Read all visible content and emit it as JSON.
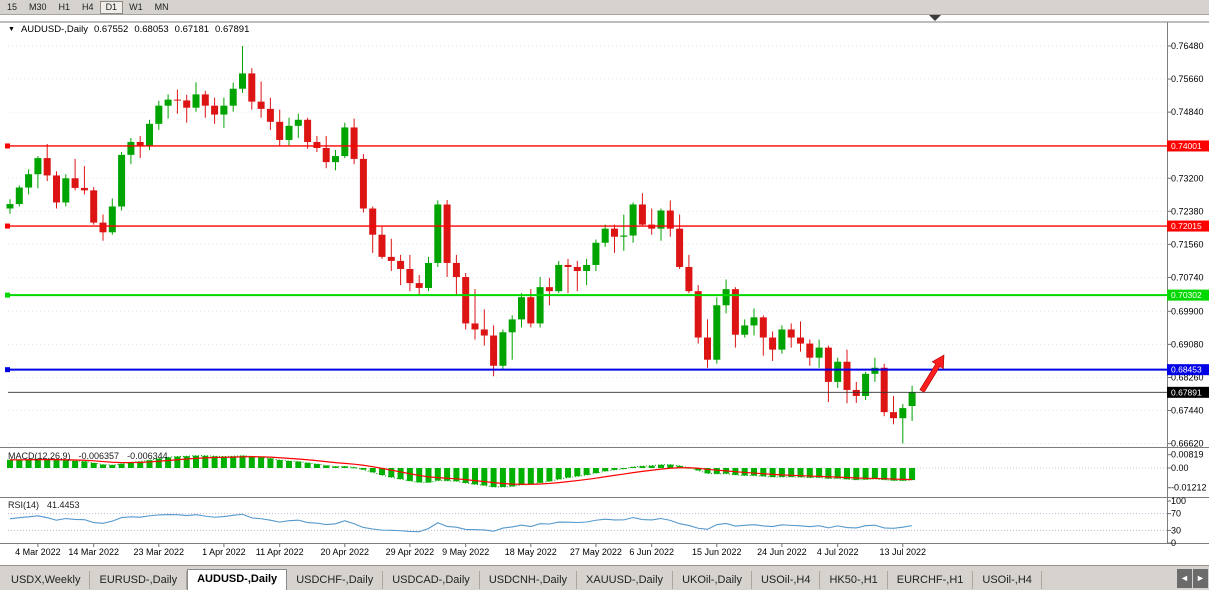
{
  "toolbar": {
    "timeframes": [
      {
        "label": "15",
        "active": false
      },
      {
        "label": "M30",
        "active": false
      },
      {
        "label": "H1",
        "active": false
      },
      {
        "label": "H4",
        "active": false
      },
      {
        "label": "D1",
        "active": true
      },
      {
        "label": "W1",
        "active": false
      },
      {
        "label": "MN",
        "active": false
      }
    ]
  },
  "chart_title": {
    "menu_icon": "▼",
    "symbol": "AUDUSD-,Daily",
    "open": "0.67552",
    "high": "0.68053",
    "low": "0.67181",
    "close": "0.67891"
  },
  "indicator_labels": {
    "macd": {
      "name": "MACD(12,26,9)",
      "main_value": "-0.006357",
      "signal_value": "-0.006344"
    },
    "rsi": {
      "name": "RSI(14)",
      "value": "41.4453"
    }
  },
  "chart_data": {
    "type": "candlestick",
    "symbol": "AUDUSD",
    "timeframe": "Daily",
    "price_view_range": [
      0.663,
      0.768
    ],
    "y_axis_labels": [
      "0.76480",
      "0.75660",
      "0.74840",
      "0.73200",
      "0.72380",
      "0.71560",
      "0.70740",
      "0.69900",
      "0.69080",
      "0.68260",
      "0.67440",
      "0.66620"
    ],
    "hlines": [
      {
        "price": 0.74001,
        "label": "0.74001",
        "color": "#FF0000",
        "width": 1.4
      },
      {
        "price": 0.72015,
        "label": "0.72015",
        "color": "#FF0000",
        "width": 1.4
      },
      {
        "price": 0.70302,
        "label": "0.70302",
        "color": "#00D800",
        "width": 2
      },
      {
        "price": 0.68453,
        "label": "0.68453",
        "color": "#0000E6",
        "width": 2
      }
    ],
    "current_price": {
      "price": 0.67891,
      "label": "0.67891",
      "color": "#000000"
    },
    "candles": [
      [
        0.7245,
        0.7268,
        0.7232,
        0.7256
      ],
      [
        0.7256,
        0.7302,
        0.725,
        0.7297
      ],
      [
        0.7297,
        0.7342,
        0.728,
        0.733
      ],
      [
        0.733,
        0.7375,
        0.7295,
        0.737
      ],
      [
        0.737,
        0.7405,
        0.7313,
        0.7327
      ],
      [
        0.7327,
        0.7337,
        0.7245,
        0.726
      ],
      [
        0.726,
        0.733,
        0.725,
        0.732
      ],
      [
        0.732,
        0.7368,
        0.729,
        0.7296
      ],
      [
        0.7296,
        0.735,
        0.728,
        0.729
      ],
      [
        0.729,
        0.7298,
        0.7205,
        0.721
      ],
      [
        0.721,
        0.723,
        0.7165,
        0.7186
      ],
      [
        0.7186,
        0.727,
        0.718,
        0.725
      ],
      [
        0.725,
        0.7385,
        0.724,
        0.7378
      ],
      [
        0.7378,
        0.742,
        0.7355,
        0.741
      ],
      [
        0.741,
        0.7425,
        0.737,
        0.74
      ],
      [
        0.74,
        0.7465,
        0.739,
        0.7455
      ],
      [
        0.7455,
        0.7512,
        0.744,
        0.75
      ],
      [
        0.75,
        0.7528,
        0.7468,
        0.7515
      ],
      [
        0.7515,
        0.754,
        0.748,
        0.7513
      ],
      [
        0.7513,
        0.7527,
        0.7458,
        0.7495
      ],
      [
        0.7495,
        0.7558,
        0.7485,
        0.7528
      ],
      [
        0.7528,
        0.7537,
        0.747,
        0.75
      ],
      [
        0.75,
        0.752,
        0.7455,
        0.7478
      ],
      [
        0.7478,
        0.752,
        0.7445,
        0.75
      ],
      [
        0.75,
        0.7557,
        0.7485,
        0.7542
      ],
      [
        0.7542,
        0.7648,
        0.7532,
        0.758
      ],
      [
        0.758,
        0.7593,
        0.749,
        0.751
      ],
      [
        0.751,
        0.756,
        0.747,
        0.7492
      ],
      [
        0.7492,
        0.752,
        0.744,
        0.746
      ],
      [
        0.746,
        0.749,
        0.74,
        0.7415
      ],
      [
        0.7415,
        0.747,
        0.74,
        0.745
      ],
      [
        0.745,
        0.748,
        0.742,
        0.7465
      ],
      [
        0.7465,
        0.747,
        0.7393,
        0.741
      ],
      [
        0.741,
        0.7425,
        0.7385,
        0.7395
      ],
      [
        0.7395,
        0.7425,
        0.7345,
        0.736
      ],
      [
        0.736,
        0.739,
        0.734,
        0.7375
      ],
      [
        0.7375,
        0.7458,
        0.737,
        0.7446
      ],
      [
        0.7446,
        0.7468,
        0.7355,
        0.7368
      ],
      [
        0.7368,
        0.738,
        0.7235,
        0.7245
      ],
      [
        0.7245,
        0.725,
        0.7135,
        0.718
      ],
      [
        0.718,
        0.72,
        0.712,
        0.7125
      ],
      [
        0.7125,
        0.717,
        0.709,
        0.7115
      ],
      [
        0.7115,
        0.713,
        0.7055,
        0.7095
      ],
      [
        0.7095,
        0.713,
        0.704,
        0.706
      ],
      [
        0.706,
        0.708,
        0.7029,
        0.7048
      ],
      [
        0.7048,
        0.7125,
        0.704,
        0.711
      ],
      [
        0.711,
        0.7265,
        0.71,
        0.7255
      ],
      [
        0.7255,
        0.7266,
        0.7075,
        0.711
      ],
      [
        0.711,
        0.713,
        0.703,
        0.7075
      ],
      [
        0.7075,
        0.7085,
        0.6945,
        0.696
      ],
      [
        0.696,
        0.7045,
        0.692,
        0.6945
      ],
      [
        0.6945,
        0.6995,
        0.6905,
        0.693
      ],
      [
        0.693,
        0.6955,
        0.6829,
        0.6855
      ],
      [
        0.6855,
        0.6945,
        0.6845,
        0.6938
      ],
      [
        0.6938,
        0.698,
        0.687,
        0.697
      ],
      [
        0.697,
        0.7035,
        0.695,
        0.7025
      ],
      [
        0.7025,
        0.7045,
        0.695,
        0.696
      ],
      [
        0.696,
        0.7075,
        0.695,
        0.705
      ],
      [
        0.705,
        0.7073,
        0.7005,
        0.704
      ],
      [
        0.704,
        0.7115,
        0.7035,
        0.7105
      ],
      [
        0.7105,
        0.712,
        0.7035,
        0.71
      ],
      [
        0.71,
        0.7115,
        0.704,
        0.709
      ],
      [
        0.709,
        0.712,
        0.7055,
        0.7105
      ],
      [
        0.7105,
        0.7168,
        0.709,
        0.716
      ],
      [
        0.716,
        0.7205,
        0.715,
        0.7195
      ],
      [
        0.7195,
        0.7205,
        0.7135,
        0.7175
      ],
      [
        0.7175,
        0.723,
        0.714,
        0.7178
      ],
      [
        0.7178,
        0.726,
        0.716,
        0.7255
      ],
      [
        0.7255,
        0.7283,
        0.72,
        0.7205
      ],
      [
        0.7205,
        0.7245,
        0.718,
        0.7195
      ],
      [
        0.7195,
        0.7245,
        0.7165,
        0.724
      ],
      [
        0.724,
        0.7265,
        0.7175,
        0.7195
      ],
      [
        0.7195,
        0.723,
        0.7095,
        0.71
      ],
      [
        0.71,
        0.713,
        0.7035,
        0.704
      ],
      [
        0.704,
        0.7055,
        0.691,
        0.6925
      ],
      [
        0.6925,
        0.697,
        0.685,
        0.687
      ],
      [
        0.687,
        0.7025,
        0.686,
        0.7005
      ],
      [
        0.7005,
        0.7069,
        0.6985,
        0.7045
      ],
      [
        0.7045,
        0.705,
        0.69,
        0.6932
      ],
      [
        0.6932,
        0.697,
        0.6925,
        0.6955
      ],
      [
        0.6955,
        0.6997,
        0.693,
        0.6975
      ],
      [
        0.6975,
        0.698,
        0.688,
        0.6925
      ],
      [
        0.6925,
        0.694,
        0.6867,
        0.6895
      ],
      [
        0.6895,
        0.6955,
        0.6885,
        0.6945
      ],
      [
        0.6945,
        0.696,
        0.69,
        0.6925
      ],
      [
        0.6925,
        0.6965,
        0.689,
        0.691
      ],
      [
        0.691,
        0.692,
        0.6855,
        0.6875
      ],
      [
        0.6875,
        0.692,
        0.685,
        0.69
      ],
      [
        0.69,
        0.6905,
        0.6765,
        0.6815
      ],
      [
        0.6815,
        0.6875,
        0.68,
        0.6865
      ],
      [
        0.6865,
        0.6895,
        0.6762,
        0.6795
      ],
      [
        0.6795,
        0.6815,
        0.6763,
        0.678
      ],
      [
        0.678,
        0.684,
        0.677,
        0.6835
      ],
      [
        0.6835,
        0.6875,
        0.6815,
        0.685
      ],
      [
        0.685,
        0.686,
        0.673,
        0.674
      ],
      [
        0.674,
        0.678,
        0.671,
        0.6725
      ],
      [
        0.6725,
        0.676,
        0.6662,
        0.675
      ],
      [
        0.67552,
        0.68053,
        0.67181,
        0.67891
      ]
    ],
    "date_ticks": [
      {
        "i": 3,
        "label": "4 Mar 2022"
      },
      {
        "i": 9,
        "label": "14 Mar 2022"
      },
      {
        "i": 16,
        "label": "23 Mar 2022"
      },
      {
        "i": 23,
        "label": "1 Apr 2022"
      },
      {
        "i": 29,
        "label": "11 Apr 2022"
      },
      {
        "i": 36,
        "label": "20 Apr 2022"
      },
      {
        "i": 43,
        "label": "29 Apr 2022"
      },
      {
        "i": 49,
        "label": "9 May 2022"
      },
      {
        "i": 56,
        "label": "18 May 2022"
      },
      {
        "i": 63,
        "label": "27 May 2022"
      },
      {
        "i": 69,
        "label": "6 Jun 2022"
      },
      {
        "i": 76,
        "label": "15 Jun 2022"
      },
      {
        "i": 83,
        "label": "24 Jun 2022"
      },
      {
        "i": 89,
        "label": "4 Jul 2022"
      },
      {
        "i": 96,
        "label": "13 Jul 2022"
      }
    ],
    "macd_axis": [
      {
        "label": "0.00819",
        "value": 0.00819
      },
      {
        "label": "0.00",
        "value": 0
      },
      {
        "label": "-0.01212",
        "value": -0.01212
      }
    ],
    "rsi_axis": [
      {
        "label": "100",
        "value": 100
      },
      {
        "label": "70",
        "value": 70
      },
      {
        "label": "30",
        "value": 30
      },
      {
        "label": "0",
        "value": 0
      }
    ],
    "rsi_levels": [
      70,
      30
    ],
    "colors": {
      "bull": "#00A400",
      "bear": "#DC1414",
      "macd_hist": "#00B000",
      "macd_signal": "#FF0000",
      "macd_main": "#00A000",
      "rsi_line": "#5599CC",
      "grid": "#E6E6E6"
    },
    "annotations": [
      {
        "type": "arrow-up",
        "color": "#FF1E1E"
      }
    ]
  },
  "tabs": {
    "items": [
      {
        "label": "USDX,Weekly",
        "active": false
      },
      {
        "label": "EURUSD-,Daily",
        "active": false
      },
      {
        "label": "AUDUSD-,Daily",
        "active": true
      },
      {
        "label": "USDCHF-,Daily",
        "active": false
      },
      {
        "label": "USDCAD-,Daily",
        "active": false
      },
      {
        "label": "USDCNH-,Daily",
        "active": false
      },
      {
        "label": "XAUUSD-,Daily",
        "active": false
      },
      {
        "label": "UKOil-,Daily",
        "active": false
      },
      {
        "label": "USOil-,H4",
        "active": false
      },
      {
        "label": "HK50-,H1",
        "active": false
      },
      {
        "label": "EURCHF-,H1",
        "active": false
      },
      {
        "label": "USOil-,H4",
        "active": false
      }
    ],
    "scroll_left": "◄",
    "scroll_right": "►"
  }
}
